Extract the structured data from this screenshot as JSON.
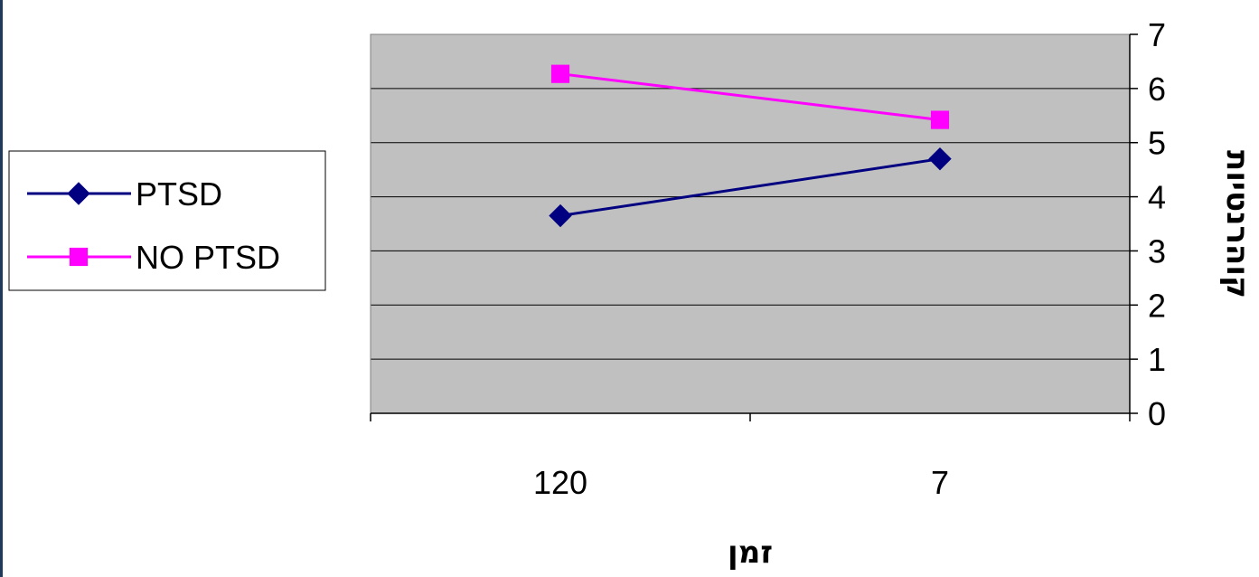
{
  "chart_data": {
    "type": "line",
    "categories": [
      "120",
      "7"
    ],
    "series": [
      {
        "name": "PTSD",
        "values": [
          3.65,
          4.7
        ],
        "color": "#000080",
        "marker": "diamond"
      },
      {
        "name": "NO PTSD",
        "values": [
          6.27,
          5.42
        ],
        "color": "#ff00ff",
        "marker": "square"
      }
    ],
    "xlabel": "זמן",
    "ylabel": "קוהרנטיות",
    "ylim": [
      0,
      7
    ],
    "yticks": [
      0,
      1,
      2,
      3,
      4,
      5,
      6,
      7
    ],
    "y_axis_side": "right",
    "grid": true,
    "plot_background": "#c0c0c0",
    "legend_position": "left"
  }
}
